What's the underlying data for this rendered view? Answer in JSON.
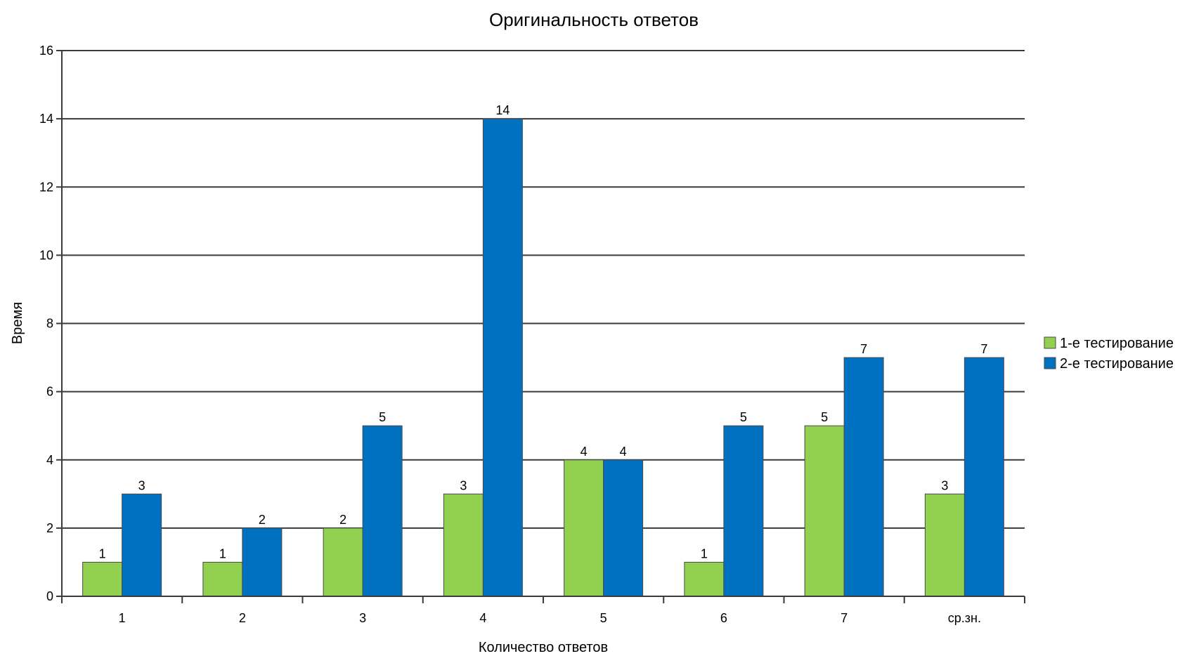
{
  "chart_data": {
    "type": "bar",
    "title": "Оригинальность ответов",
    "xlabel": "Количество ответов",
    "ylabel": "Время",
    "categories": [
      "1",
      "2",
      "3",
      "4",
      "5",
      "6",
      "7",
      "ср.зн."
    ],
    "series": [
      {
        "name": "1-е тестирование",
        "values": [
          1,
          1,
          2,
          3,
          4,
          1,
          5,
          3
        ],
        "color": "#92d050"
      },
      {
        "name": "2-е тестирование",
        "values": [
          3,
          2,
          5,
          14,
          4,
          5,
          7,
          7
        ],
        "color": "#0070c0"
      }
    ],
    "ylim": [
      0,
      16
    ],
    "yticks": [
      0,
      2,
      4,
      6,
      8,
      10,
      12,
      14,
      16
    ],
    "grid": true,
    "legend_position": "right"
  }
}
